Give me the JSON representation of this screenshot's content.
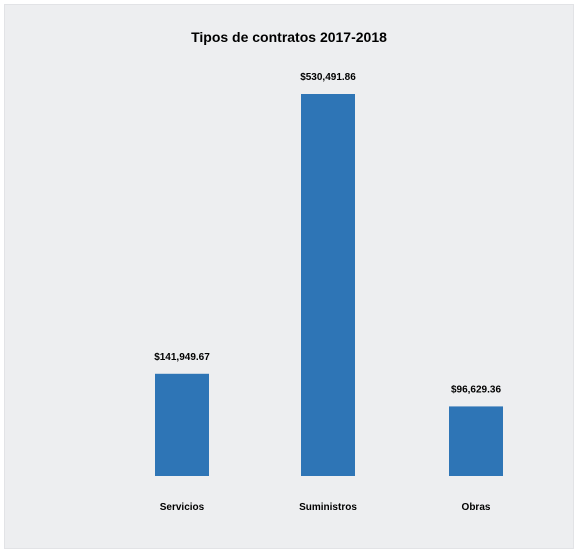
{
  "chart_data": {
    "type": "bar",
    "title": "Tipos de contratos 2017-2018",
    "categories": [
      "Servicios",
      "Suministros",
      "Obras"
    ],
    "values": [
      141949.67,
      530491.86,
      96629.36
    ],
    "data_labels": [
      "$141,949.67",
      "$530,491.86",
      "$96,629.36"
    ],
    "color": "#2e75b6",
    "grid": false,
    "legend": "none"
  }
}
